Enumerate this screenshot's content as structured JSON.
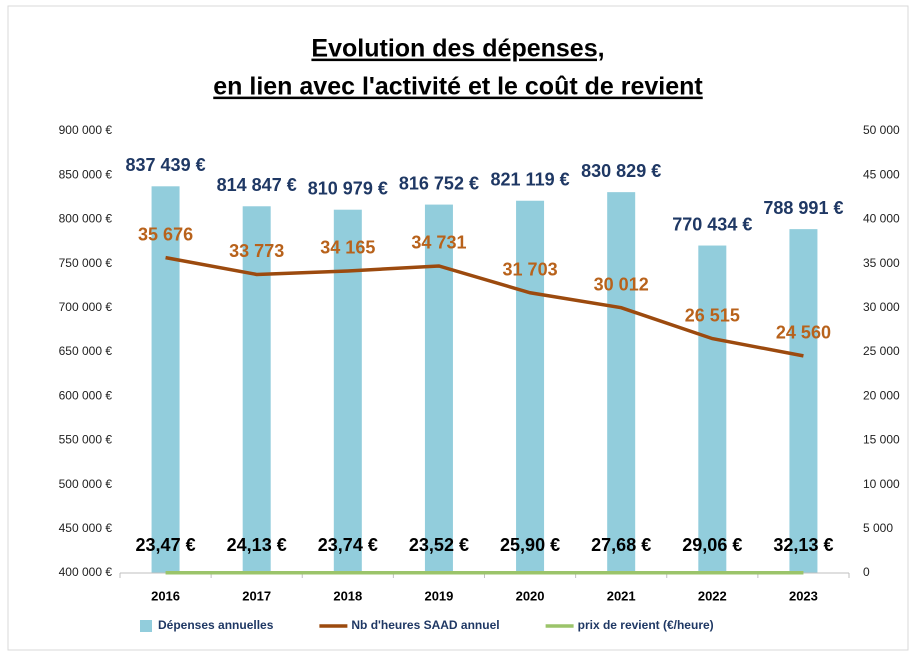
{
  "chart_data": {
    "type": "bar",
    "title": [
      "Evolution des dépenses,",
      "en lien avec l'activité et le coût de revient"
    ],
    "categories": [
      "2016",
      "2017",
      "2018",
      "2019",
      "2020",
      "2021",
      "2022",
      "2023"
    ],
    "series": [
      {
        "name": "Dépenses annuelles",
        "type": "bar",
        "color": "#92cddc",
        "label_color": "#1f3864",
        "values": [
          837439,
          814847,
          810979,
          816752,
          821119,
          830829,
          770434,
          788991
        ],
        "value_labels": [
          "837 439 €",
          "814 847 €",
          "810 979 €",
          "816 752 €",
          "821 119 €",
          "830 829 €",
          "770 434 €",
          "788 991 €"
        ]
      },
      {
        "name": "Nb d'heures SAAD annuel",
        "type": "line",
        "axis": "y2",
        "color": "#9c4a0e",
        "label_color": "#b8621b",
        "values": [
          35676,
          33773,
          34165,
          34731,
          31703,
          30012,
          26515,
          24560
        ],
        "value_labels": [
          "35 676",
          "33 773",
          "34 165",
          "34 731",
          "31 703",
          "30 012",
          "26 515",
          "24 560"
        ]
      },
      {
        "name": "prix de revient (€/heure)",
        "type": "line",
        "axis": "y2",
        "color": "#9bc46a",
        "label_color": "#000000",
        "values": [
          23.47,
          24.13,
          23.74,
          23.52,
          25.9,
          27.68,
          29.06,
          32.13
        ],
        "value_labels": [
          "23,47 €",
          "24,13 €",
          "23,74 €",
          "23,52 €",
          "25,90 €",
          "27,68 €",
          "29,06 €",
          "32,13 €"
        ]
      }
    ],
    "ylim": [
      400000,
      900000
    ],
    "yticks": [
      {
        "value": 400000,
        "label": "400 000 €"
      },
      {
        "value": 450000,
        "label": "450 000 €"
      },
      {
        "value": 500000,
        "label": "500 000 €"
      },
      {
        "value": 550000,
        "label": "550 000 €"
      },
      {
        "value": 600000,
        "label": "600 000 €"
      },
      {
        "value": 650000,
        "label": "650 000 €"
      },
      {
        "value": 700000,
        "label": "700 000 €"
      },
      {
        "value": 750000,
        "label": "750 000 €"
      },
      {
        "value": 800000,
        "label": "800 000 €"
      },
      {
        "value": 850000,
        "label": "850 000 €"
      },
      {
        "value": 900000,
        "label": "900 000 €"
      }
    ],
    "y2lim": [
      0,
      50000
    ],
    "y2ticks": [
      0,
      {
        "value": 5000,
        "label": "5 000"
      },
      {
        "value": 10000,
        "label": "10 000"
      },
      {
        "value": 15000,
        "label": "15 000"
      },
      {
        "value": 20000,
        "label": "20 000"
      },
      {
        "value": 25000,
        "label": "25 000"
      },
      {
        "value": 30000,
        "label": "30 000"
      },
      {
        "value": 35000,
        "label": "35 000"
      },
      {
        "value": 40000,
        "label": "40 000"
      },
      {
        "value": 45000,
        "label": "45 000"
      },
      {
        "value": 50000,
        "label": "50 000"
      }
    ],
    "grid": false,
    "legend": "bottom"
  }
}
